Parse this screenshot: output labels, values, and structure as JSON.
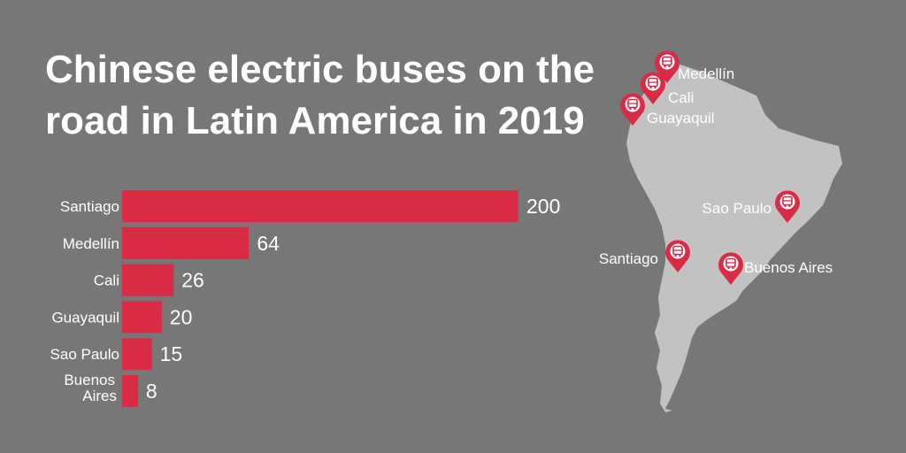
{
  "title_lines": [
    "Chinese electric buses on the",
    "road in Latin America in 2019"
  ],
  "colors": {
    "background": "#777777",
    "bar": "#d92b46",
    "land": "#c2c2c2",
    "text": "#ffffff"
  },
  "chart_data": {
    "type": "bar",
    "orientation": "horizontal",
    "title": "Chinese electric buses on the road in Latin America in 2019",
    "categories": [
      "Santiago",
      "Medellín",
      "Cali",
      "Guayaquil",
      "Sao Paulo",
      "Buenos Aires"
    ],
    "category_lines": [
      [
        "Santiago"
      ],
      [
        "Medellín"
      ],
      [
        "Cali"
      ],
      [
        "Guayaquil"
      ],
      [
        "Sao Paulo"
      ],
      [
        "Buenos",
        "Aires"
      ]
    ],
    "values": [
      200,
      64,
      26,
      20,
      15,
      8
    ],
    "xlim": [
      0,
      200
    ],
    "grid": false,
    "legend": "none"
  },
  "map": {
    "markers": [
      {
        "city": "Medellín",
        "icon": "bus-icon"
      },
      {
        "city": "Cali",
        "icon": "bus-icon"
      },
      {
        "city": "Guayaquil",
        "icon": "bus-icon"
      },
      {
        "city": "Sao Paulo",
        "icon": "bus-icon"
      },
      {
        "city": "Santiago",
        "icon": "bus-icon"
      },
      {
        "city": "Buenos Aires",
        "icon": "bus-icon"
      }
    ]
  }
}
